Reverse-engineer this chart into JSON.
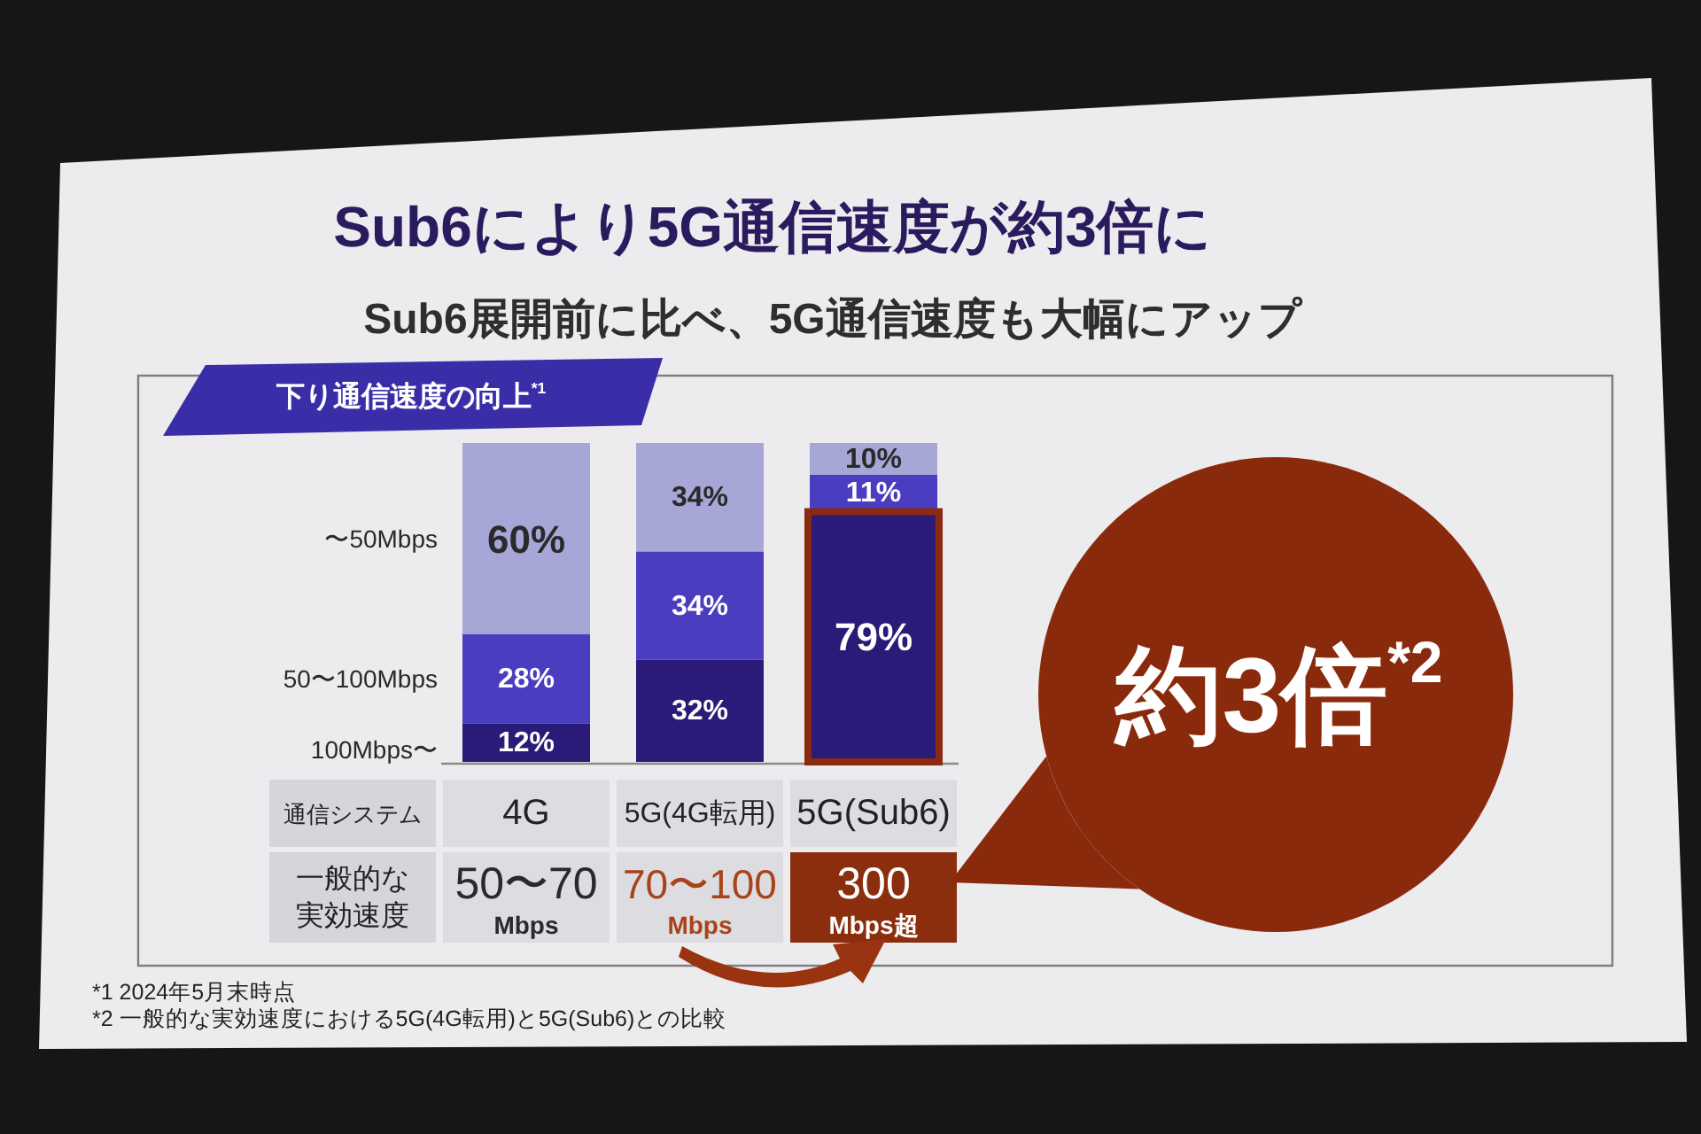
{
  "chart_data": {
    "type": "bar",
    "stacked": true,
    "title": "Sub6により5G通信速度が約3倍に",
    "subtitle": "Sub6展開前に比べ、5G通信速度も大幅にアップ",
    "xlabel": "通信システム",
    "categories": [
      "4G",
      "5G(4G転用)",
      "5G(Sub6)"
    ],
    "series": [
      {
        "name": "100Mbps〜",
        "color": "#2b1b78",
        "values": [
          12,
          32,
          79
        ],
        "value_labels": [
          "12%",
          "32%",
          "79%"
        ]
      },
      {
        "name": "50〜100Mbps",
        "color": "#4a3dc0",
        "values": [
          28,
          34,
          11
        ],
        "value_labels": [
          "28%",
          "34%",
          "11%"
        ]
      },
      {
        "name": "〜50Mbps",
        "color": "#a6a7d6",
        "values": [
          60,
          34,
          10
        ],
        "value_labels": [
          "60%",
          "34%",
          "10%"
        ]
      }
    ],
    "annotations": [
      "下り通信速度の向上$^{*1}$",
      "一般的な実効速度",
      "50〜70",
      "Mbps",
      "70〜100",
      "Mbps",
      "300",
      "Mbps超",
      "約3倍$^{*2}$",
      "*1 2024年5月末時点",
      "*2 一般的な実効速度における5G(4G転用)と5G(Sub6)との比較"
    ]
  }
}
